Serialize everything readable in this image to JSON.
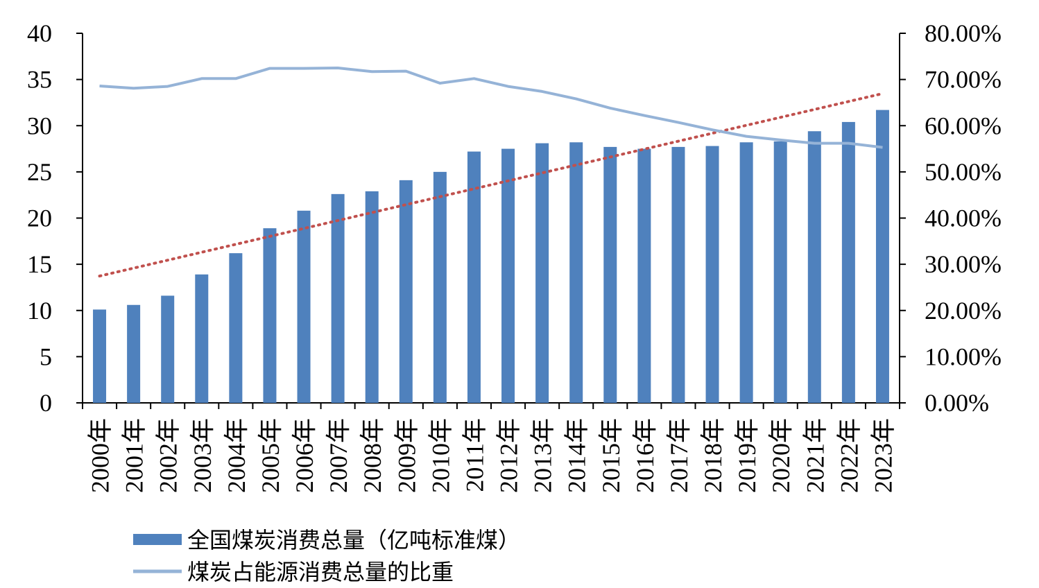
{
  "chart_data": {
    "type": "bar",
    "title": "",
    "categories": [
      "2000年",
      "2001年",
      "2002年",
      "2003年",
      "2004年",
      "2005年",
      "2006年",
      "2007年",
      "2008年",
      "2009年",
      "2010年",
      "2011年",
      "2012年",
      "2013年",
      "2014年",
      "2015年",
      "2016年",
      "2017年",
      "2018年",
      "2019年",
      "2020年",
      "2021年",
      "2022年",
      "2023年"
    ],
    "series": [
      {
        "name": "全国煤炭消费总量（亿吨标准煤）",
        "kind": "bar",
        "axis": "left",
        "color": "#4F81BD",
        "values": [
          10.1,
          10.6,
          11.6,
          13.9,
          16.2,
          18.9,
          20.8,
          22.6,
          22.9,
          24.1,
          25.0,
          27.2,
          27.5,
          28.1,
          28.2,
          27.7,
          27.5,
          27.7,
          27.8,
          28.2,
          28.3,
          29.4,
          30.4,
          31.7
        ]
      },
      {
        "name": "煤炭占能源消费总量的比重",
        "kind": "line",
        "axis": "right",
        "color": "#95B3D7",
        "values": [
          0.686,
          0.681,
          0.685,
          0.702,
          0.702,
          0.724,
          0.724,
          0.725,
          0.717,
          0.718,
          0.692,
          0.702,
          0.685,
          0.674,
          0.658,
          0.638,
          0.622,
          0.607,
          0.591,
          0.577,
          0.569,
          0.562,
          0.562,
          0.553
        ]
      },
      {
        "kind": "trendline",
        "axis": "left",
        "of_series": 0,
        "color": "#C0504D",
        "style": "dotted"
      }
    ],
    "left_axis": {
      "ylim": [
        0,
        40
      ],
      "ticks": [
        0,
        5,
        10,
        15,
        20,
        25,
        30,
        35,
        40
      ],
      "tick_labels": [
        "0",
        "5",
        "10",
        "15",
        "20",
        "25",
        "30",
        "35",
        "40"
      ]
    },
    "right_axis": {
      "ylim": [
        0,
        0.8
      ],
      "ticks": [
        0,
        0.1,
        0.2,
        0.3,
        0.4,
        0.5,
        0.6,
        0.7,
        0.8
      ],
      "tick_labels": [
        "0.00%",
        "10.00%",
        "20.00%",
        "30.00%",
        "40.00%",
        "50.00%",
        "60.00%",
        "70.00%",
        "80.00%"
      ]
    },
    "xlabel": "",
    "ylabel": "",
    "grid": false,
    "legend_placement": "bottom-left"
  }
}
